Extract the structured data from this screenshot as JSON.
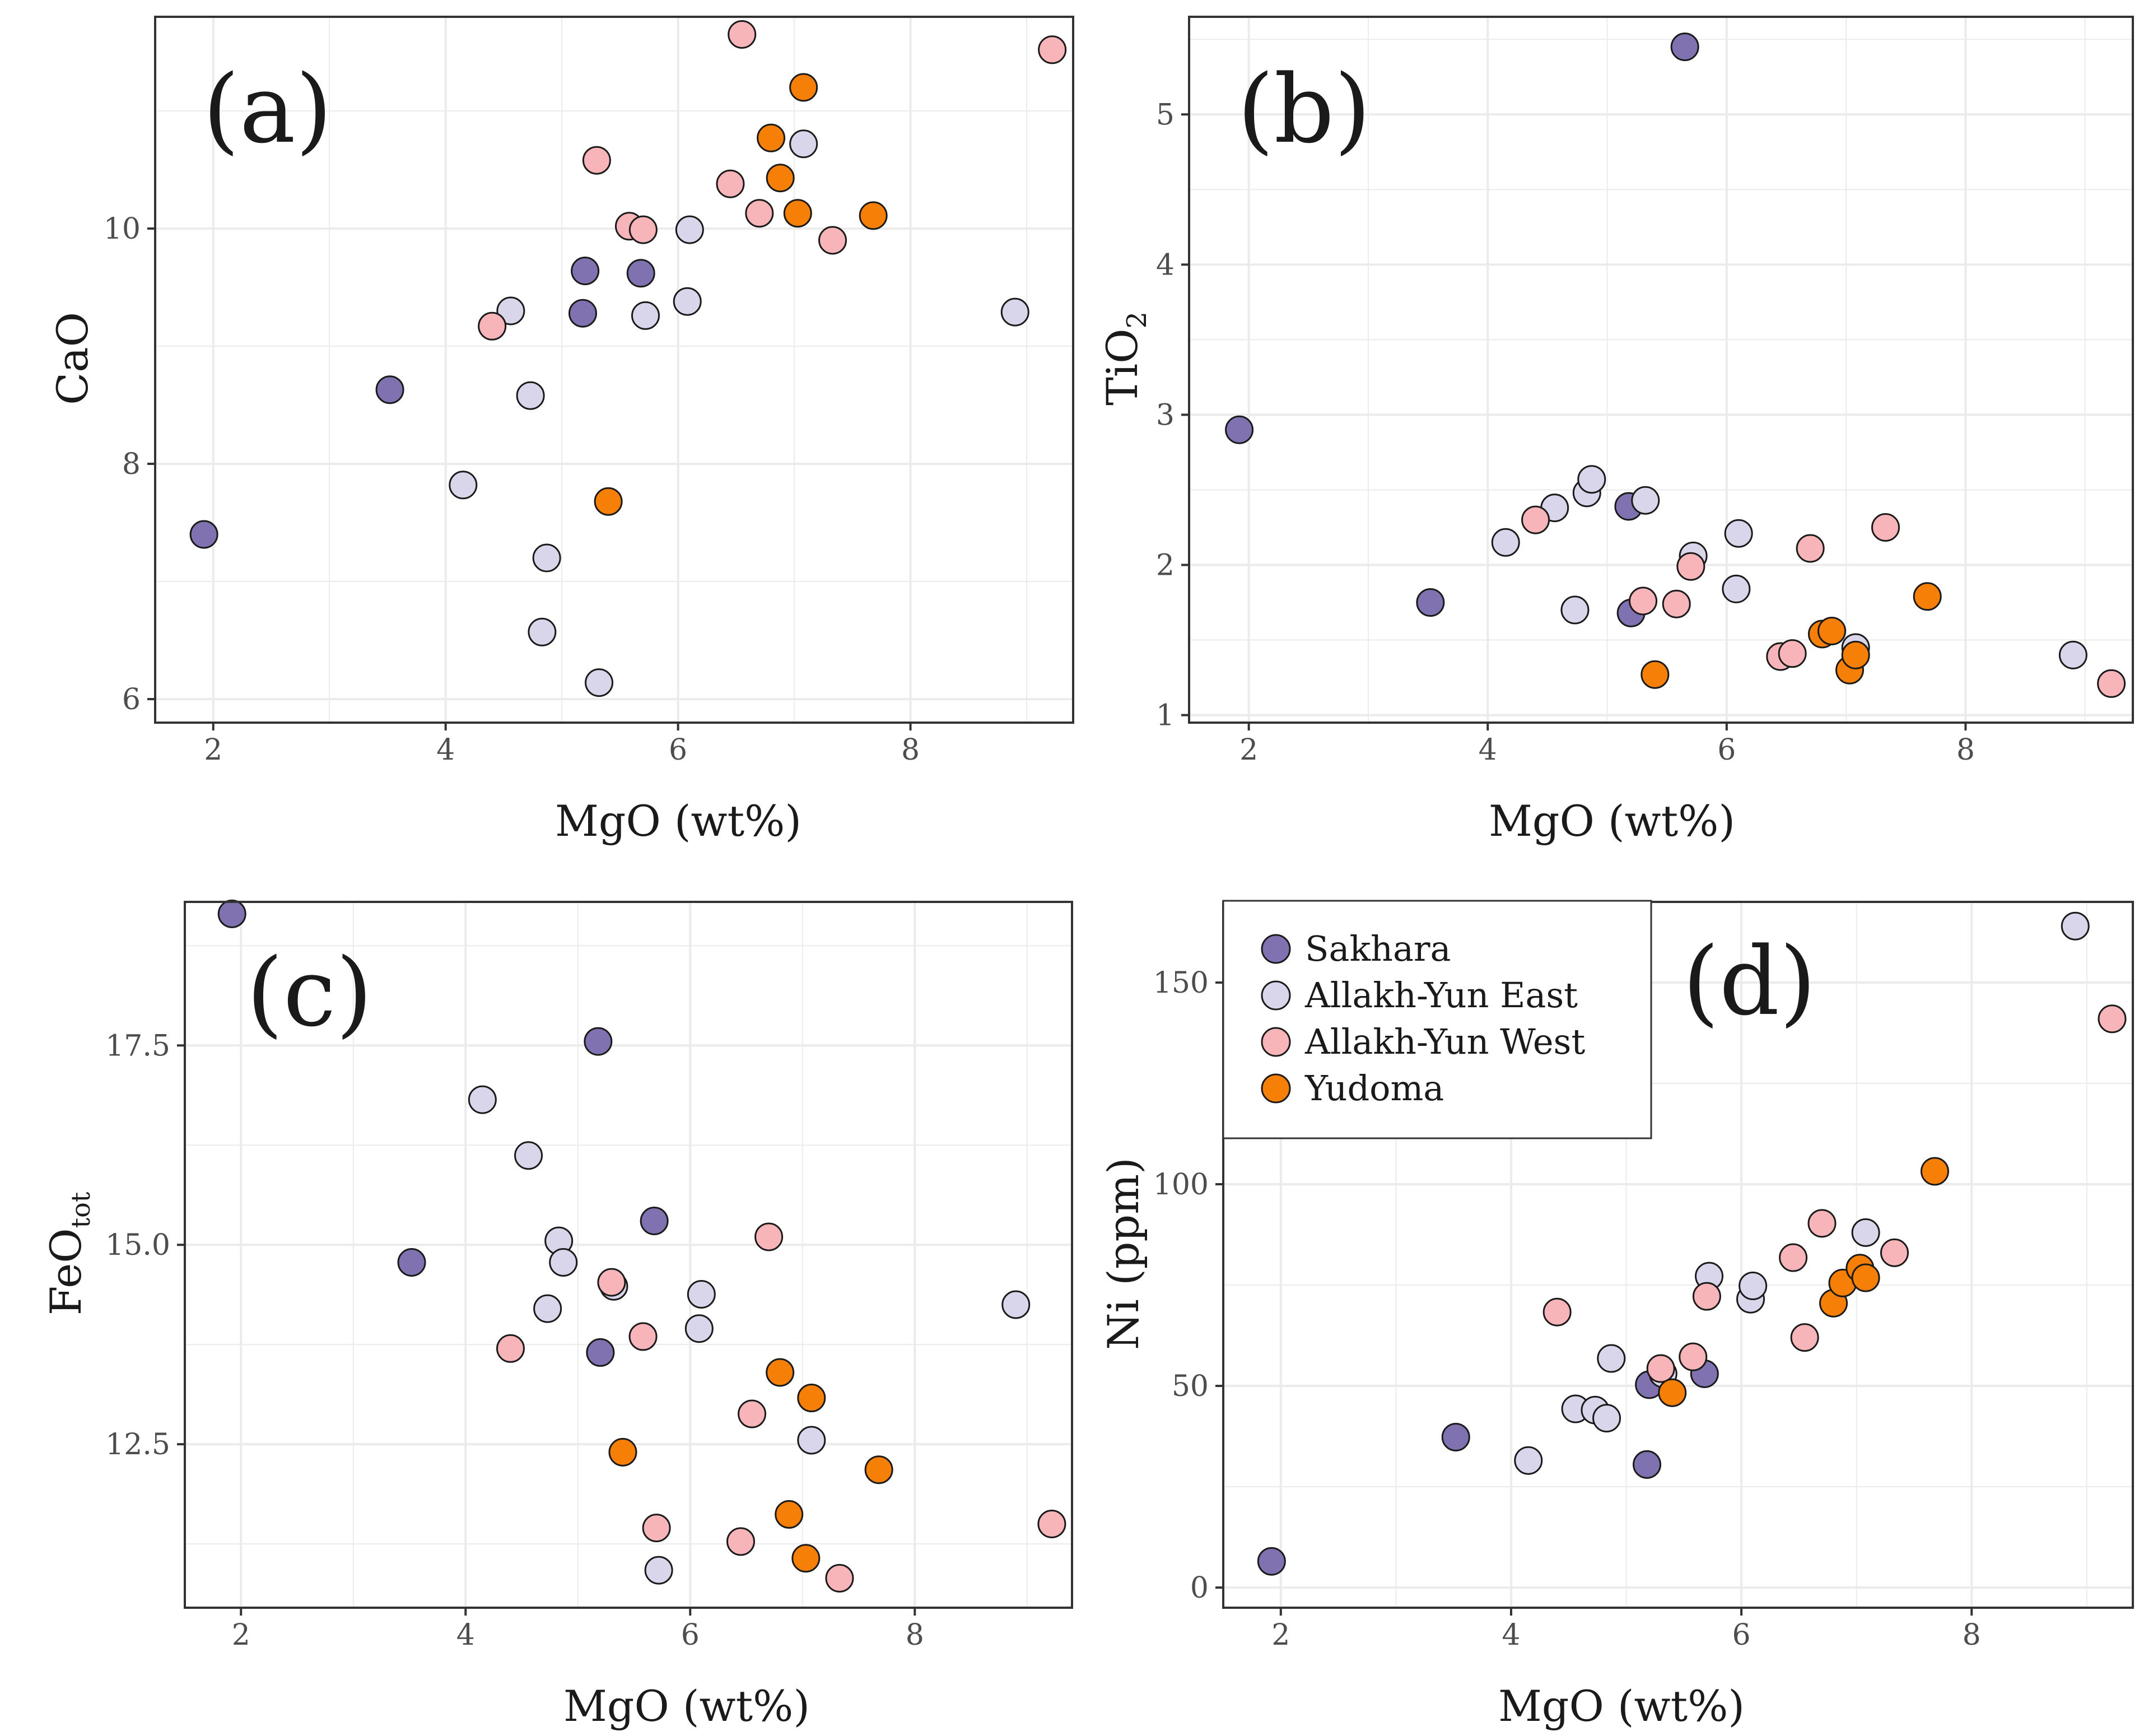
{
  "series_styles": [
    {
      "name": "Sakhara",
      "color": "#8072b0"
    },
    {
      "name": "Allakh-Yun East",
      "color": "#d9d6ec"
    },
    {
      "name": "Allakh-Yun West",
      "color": "#f7b4b9"
    },
    {
      "name": "Yudoma",
      "color": "#f57f07"
    }
  ],
  "marker_stroke": "#1a1a1a",
  "grid_color": "#ebebeb",
  "legend": {
    "placement": "top-left of panel (d)",
    "items": [
      "Sakhara",
      "Allakh-Yun East",
      "Allakh-Yun West",
      "Yudoma"
    ]
  },
  "chart_data": [
    {
      "type": "scatter",
      "panel": "(a)",
      "xlabel": "MgO (wt%)",
      "ylabel": "CaO",
      "xlim": [
        1.5,
        9.4
      ],
      "ylim": [
        5.8,
        11.8
      ],
      "xticks": [
        2,
        4,
        6,
        8
      ],
      "yticks": [
        6,
        8,
        10
      ],
      "grid": true,
      "series": [
        {
          "name": "Sakhara",
          "points": [
            [
              1.92,
              7.4
            ],
            [
              3.52,
              8.63
            ],
            [
              5.18,
              9.28
            ],
            [
              5.2,
              9.64
            ],
            [
              5.68,
              9.62
            ]
          ]
        },
        {
          "name": "Allakh-Yun East",
          "points": [
            [
              4.15,
              7.82
            ],
            [
              4.56,
              9.3
            ],
            [
              4.73,
              8.58
            ],
            [
              4.83,
              6.57
            ],
            [
              4.87,
              7.2
            ],
            [
              5.32,
              6.14
            ],
            [
              5.72,
              9.26
            ],
            [
              6.08,
              9.38
            ],
            [
              6.1,
              9.99
            ],
            [
              7.08,
              10.72
            ],
            [
              8.9,
              9.29
            ]
          ]
        },
        {
          "name": "Allakh-Yun West",
          "points": [
            [
              4.4,
              9.17
            ],
            [
              5.3,
              10.58
            ],
            [
              5.58,
              10.02
            ],
            [
              5.7,
              9.99
            ],
            [
              6.45,
              10.38
            ],
            [
              6.55,
              11.65
            ],
            [
              6.7,
              10.13
            ],
            [
              7.33,
              9.9
            ],
            [
              9.22,
              11.52
            ]
          ]
        },
        {
          "name": "Yudoma",
          "points": [
            [
              5.4,
              7.68
            ],
            [
              6.8,
              10.77
            ],
            [
              6.88,
              10.43
            ],
            [
              7.03,
              10.13
            ],
            [
              7.08,
              11.2
            ],
            [
              7.68,
              10.11
            ]
          ]
        }
      ]
    },
    {
      "type": "scatter",
      "panel": "(b)",
      "xlabel": "MgO (wt%)",
      "ylabel": "TiO2",
      "ylabel_parts": {
        "base": "TiO",
        "sub": "2"
      },
      "xlim": [
        1.5,
        9.4
      ],
      "ylim": [
        0.95,
        5.65
      ],
      "xticks": [
        2,
        4,
        6,
        8
      ],
      "yticks": [
        1,
        2,
        3,
        4,
        5
      ],
      "grid": true,
      "series": [
        {
          "name": "Sakhara",
          "points": [
            [
              1.92,
              2.9
            ],
            [
              3.52,
              1.75
            ],
            [
              5.18,
              2.39
            ],
            [
              5.2,
              1.68
            ],
            [
              5.65,
              5.45
            ]
          ]
        },
        {
          "name": "Allakh-Yun East",
          "points": [
            [
              4.15,
              2.15
            ],
            [
              4.56,
              2.38
            ],
            [
              4.73,
              1.7
            ],
            [
              4.83,
              2.48
            ],
            [
              4.87,
              2.57
            ],
            [
              5.32,
              2.43
            ],
            [
              5.72,
              2.06
            ],
            [
              6.08,
              1.84
            ],
            [
              6.1,
              2.21
            ],
            [
              7.08,
              1.45
            ],
            [
              8.9,
              1.4
            ]
          ]
        },
        {
          "name": "Allakh-Yun West",
          "points": [
            [
              4.4,
              2.3
            ],
            [
              5.3,
              1.76
            ],
            [
              5.58,
              1.74
            ],
            [
              5.7,
              1.99
            ],
            [
              6.45,
              1.39
            ],
            [
              6.55,
              1.41
            ],
            [
              6.7,
              2.11
            ],
            [
              7.33,
              2.25
            ],
            [
              9.22,
              1.21
            ]
          ]
        },
        {
          "name": "Yudoma",
          "points": [
            [
              5.4,
              1.27
            ],
            [
              6.8,
              1.54
            ],
            [
              6.88,
              1.56
            ],
            [
              7.03,
              1.3
            ],
            [
              7.08,
              1.4
            ],
            [
              7.68,
              1.79
            ]
          ]
        }
      ]
    },
    {
      "type": "scatter",
      "panel": "(c)",
      "xlabel": "MgO (wt%)",
      "ylabel": "FeOtot",
      "ylabel_parts": {
        "base": "FeO",
        "sub": "tot"
      },
      "xlim": [
        1.5,
        9.4
      ],
      "ylim": [
        10.45,
        19.3
      ],
      "xticks": [
        2,
        4,
        6,
        8
      ],
      "yticks": [
        12.5,
        15.0,
        17.5
      ],
      "ytick_labels": [
        "12.5",
        "15.0",
        "17.5"
      ],
      "grid": true,
      "series": [
        {
          "name": "Sakhara",
          "points": [
            [
              1.92,
              19.15
            ],
            [
              3.52,
              14.78
            ],
            [
              5.18,
              17.55
            ],
            [
              5.2,
              13.65
            ],
            [
              5.68,
              15.3
            ]
          ]
        },
        {
          "name": "Allakh-Yun East",
          "points": [
            [
              4.15,
              16.82
            ],
            [
              4.56,
              16.12
            ],
            [
              4.73,
              14.2
            ],
            [
              4.83,
              15.05
            ],
            [
              4.87,
              14.78
            ],
            [
              5.32,
              14.48
            ],
            [
              5.72,
              10.92
            ],
            [
              6.08,
              13.95
            ],
            [
              6.1,
              14.38
            ],
            [
              7.08,
              12.55
            ],
            [
              8.9,
              14.25
            ]
          ]
        },
        {
          "name": "Allakh-Yun West",
          "points": [
            [
              4.4,
              13.7
            ],
            [
              5.3,
              14.53
            ],
            [
              5.58,
              13.85
            ],
            [
              5.7,
              11.45
            ],
            [
              6.45,
              11.28
            ],
            [
              6.55,
              12.88
            ],
            [
              6.7,
              15.1
            ],
            [
              7.33,
              10.82
            ],
            [
              9.22,
              11.5
            ]
          ]
        },
        {
          "name": "Yudoma",
          "points": [
            [
              5.4,
              12.4
            ],
            [
              6.8,
              13.4
            ],
            [
              6.88,
              11.62
            ],
            [
              7.03,
              11.07
            ],
            [
              7.08,
              13.08
            ],
            [
              7.68,
              12.18
            ]
          ]
        }
      ]
    },
    {
      "type": "scatter",
      "panel": "(d)",
      "xlabel": "MgO (wt%)",
      "ylabel": "Ni (ppm)",
      "xlim": [
        1.5,
        9.4
      ],
      "ylim": [
        -5,
        170
      ],
      "xticks": [
        2,
        4,
        6,
        8
      ],
      "yticks": [
        0,
        50,
        100,
        150
      ],
      "grid": true,
      "series": [
        {
          "name": "Sakhara",
          "points": [
            [
              1.92,
              6.5
            ],
            [
              3.52,
              37.3
            ],
            [
              5.18,
              30.5
            ],
            [
              5.2,
              50.3
            ],
            [
              5.68,
              53
            ]
          ]
        },
        {
          "name": "Allakh-Yun East",
          "points": [
            [
              4.15,
              31.5
            ],
            [
              4.56,
              44.3
            ],
            [
              4.73,
              44
            ],
            [
              4.83,
              42
            ],
            [
              4.87,
              56.8
            ],
            [
              5.32,
              53
            ],
            [
              5.72,
              77.2
            ],
            [
              6.08,
              71.5
            ],
            [
              6.1,
              74.8
            ],
            [
              7.08,
              88
            ],
            [
              8.9,
              164
            ]
          ]
        },
        {
          "name": "Allakh-Yun West",
          "points": [
            [
              4.4,
              68.3
            ],
            [
              5.3,
              54.3
            ],
            [
              5.58,
              57.2
            ],
            [
              5.7,
              72.2
            ],
            [
              6.45,
              81.8
            ],
            [
              6.55,
              62
            ],
            [
              6.7,
              90.3
            ],
            [
              7.33,
              83
            ],
            [
              9.22,
              141
            ]
          ]
        },
        {
          "name": "Yudoma",
          "points": [
            [
              5.4,
              48.3
            ],
            [
              6.8,
              70.5
            ],
            [
              6.88,
              75.5
            ],
            [
              7.03,
              79.2
            ],
            [
              7.08,
              76.8
            ],
            [
              7.68,
              103.2
            ]
          ]
        }
      ]
    }
  ]
}
